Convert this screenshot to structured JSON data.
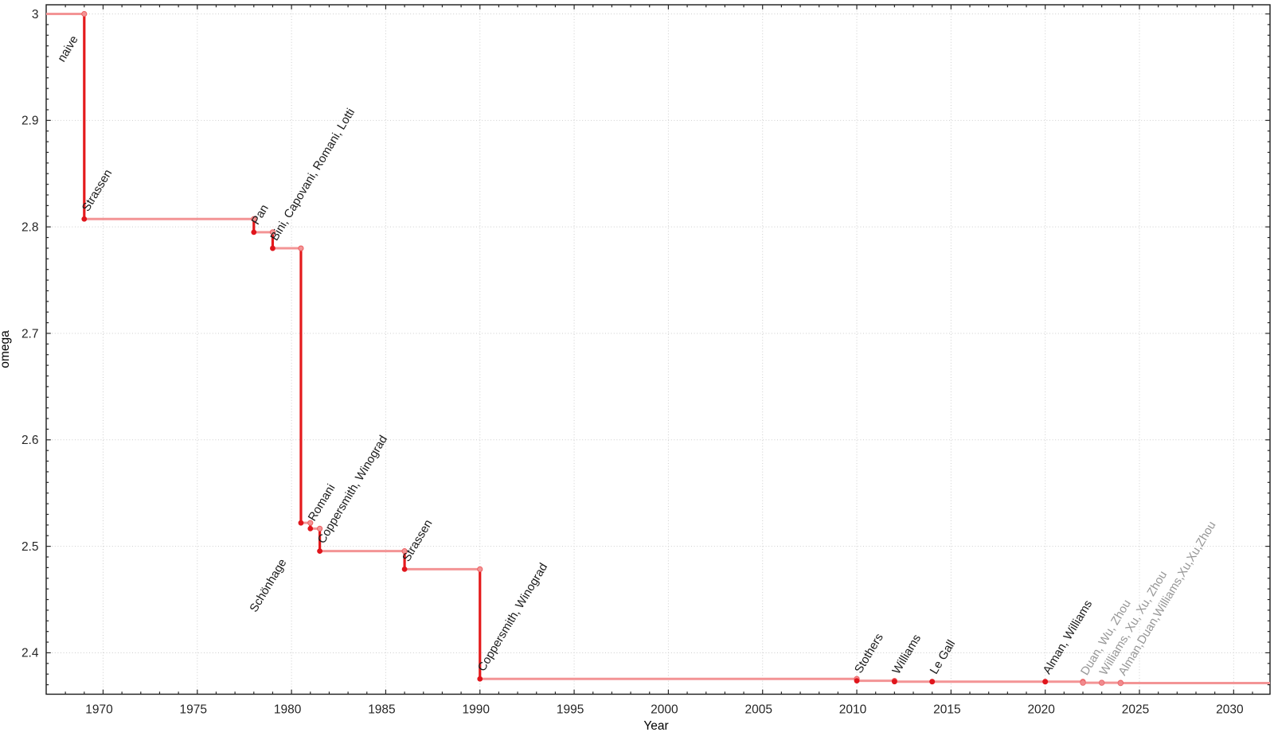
{
  "chart_data": {
    "type": "line",
    "subtype": "step-post-with-event-markers",
    "title": "",
    "xlabel": "Year",
    "ylabel": "omega",
    "xlim": [
      1966.98,
      2031.93
    ],
    "ylim": [
      2.3611,
      3.0086
    ],
    "grid": true,
    "legend": "none",
    "x_major_ticks": [
      1970,
      1975,
      1980,
      1985,
      1990,
      1995,
      2000,
      2005,
      2010,
      2015,
      2020,
      2025,
      2030
    ],
    "x_major_tick_labels": [
      "1970",
      "1975",
      "1980",
      "1985",
      "1990",
      "1995",
      "2000",
      "2005",
      "2010",
      "2015",
      "2020",
      "2025",
      "2030"
    ],
    "x_minor_tick_step": 1,
    "y_major_ticks": [
      2.4,
      2.5,
      2.6,
      2.7,
      2.8,
      2.9,
      3.0
    ],
    "y_major_tick_labels": [
      "2.4",
      "2.5",
      "2.6",
      "2.7",
      "2.8",
      "2.9",
      "3"
    ],
    "y_minor_tick_step": 0.01,
    "initial": {
      "omega": 3.0,
      "label": "naive"
    },
    "events": [
      {
        "year": 1969,
        "omega": 2.8074,
        "label": "Strassen",
        "status": "established"
      },
      {
        "year": 1978,
        "omega": 2.795,
        "label": "Pan",
        "status": "established"
      },
      {
        "year": 1979,
        "omega": 2.7799,
        "label": "Bini, Capovani, Romani, Lotti",
        "status": "established"
      },
      {
        "year": 1980.5,
        "omega": 2.522,
        "label": "Schönhage",
        "status": "established",
        "label_side": "below"
      },
      {
        "year": 1981,
        "omega": 2.5166,
        "label": "Romani",
        "status": "established"
      },
      {
        "year": 1981.5,
        "omega": 2.4955,
        "label": "Coppersmith, Winograd",
        "status": "established"
      },
      {
        "year": 1986,
        "omega": 2.4785,
        "label": "Strassen",
        "status": "established"
      },
      {
        "year": 1990,
        "omega": 2.3755,
        "label": "Coppersmith, Winograd",
        "status": "established"
      },
      {
        "year": 2010,
        "omega": 2.3737,
        "label": "Stothers",
        "status": "established"
      },
      {
        "year": 2012,
        "omega": 2.3729,
        "label": "Williams",
        "status": "established"
      },
      {
        "year": 2014,
        "omega": 2.3728639,
        "label": "Le Gall",
        "status": "established"
      },
      {
        "year": 2020,
        "omega": 2.3728596,
        "label": "Alman, Williams",
        "status": "established"
      },
      {
        "year": 2022,
        "omega": 2.37188,
        "label": "Duan, Wu, Zhou",
        "status": "recent"
      },
      {
        "year": 2023,
        "omega": 2.371866,
        "label": "Williams, Xu, Xu, Zhou",
        "status": "recent"
      },
      {
        "year": 2024,
        "omega": 2.371552,
        "label": "Alman,Duan,Williams,Xu,Xu,Zhou",
        "status": "recent"
      }
    ],
    "colors": {
      "step_line": "#f39495",
      "drop_line": "#e41a1c",
      "marker_established": "#e0151c",
      "marker_corner_fill": "#f39495",
      "marker_corner_stroke": "#ec6062",
      "marker_recent_fill": "#f18a8d",
      "marker_recent_stroke": "#e96468",
      "label_established": "#1a1a1a",
      "label_recent": "#969696",
      "gridline": "#cdcdcd",
      "axis_border": "#1a1a1a",
      "tick": "#262626",
      "tick_label": "#262626",
      "axis_label": "#1a1a1a",
      "background": "#ffffff"
    }
  }
}
